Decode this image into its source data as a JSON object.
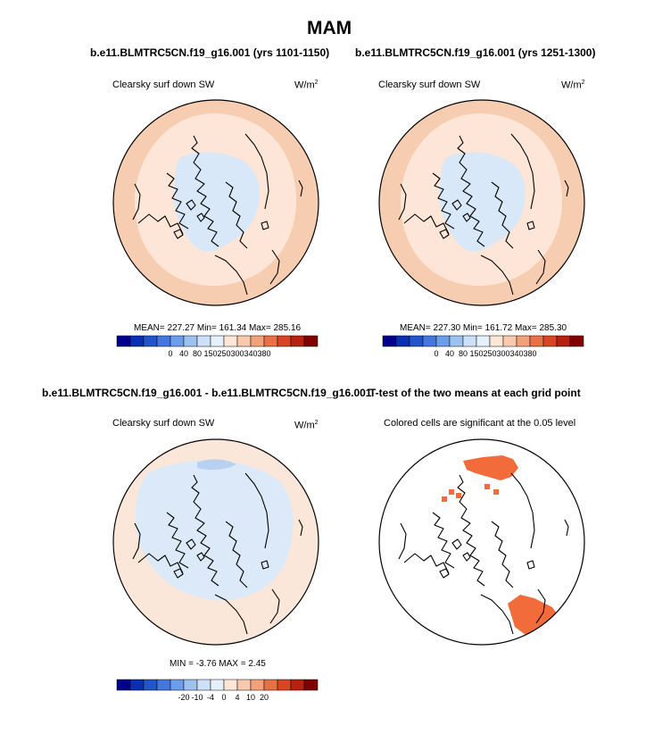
{
  "figure": {
    "title": "MAM",
    "panels": [
      {
        "title": "b.e11.BLMTRC5CN.f19_g16.001 (yrs 1101-1150)",
        "left_label": "Clearsky surf down SW",
        "unit_base": "W/m",
        "unit_exp": "2",
        "stats": "MEAN= 227.27  Min= 161.34  Max= 285.16",
        "colorbar_ticks": [
          "0",
          "40",
          "80",
          "150",
          "250",
          "300",
          "340",
          "380"
        ]
      },
      {
        "title": "b.e11.BLMTRC5CN.f19_g16.001 (yrs 1251-1300)",
        "left_label": "Clearsky surf down SW",
        "unit_base": "W/m",
        "unit_exp": "2",
        "stats": "MEAN= 227.30  Min= 161.72  Max= 285.30",
        "colorbar_ticks": [
          "0",
          "40",
          "80",
          "150",
          "250",
          "300",
          "340",
          "380"
        ]
      },
      {
        "title": "b.e11.BLMTRC5CN.f19_g16.001 - b.e11.BLMTRC5CN.f19_g16.001",
        "left_label": "Clearsky surf down SW",
        "unit_base": "W/m",
        "unit_exp": "2",
        "stats": "MIN =  -3.76 MAX =   2.45",
        "colorbar_ticks": [
          "-20",
          "-10",
          "-4",
          "0",
          "4",
          "10",
          "20"
        ]
      },
      {
        "title": "T-test of the two means at each grid point",
        "left_label": "Colored cells are significant at the 0.05 level"
      }
    ]
  },
  "chart_data": [
    {
      "type": "heatmap",
      "projection": "north polar stereographic",
      "title": "b.e11.BLMTRC5CN.f19_g16.001 (yrs 1101-1150)",
      "variable": "Clearsky surf down SW",
      "units": "W/m2",
      "mean": 227.27,
      "min": 161.34,
      "max": 285.16,
      "levels": [
        0,
        40,
        80,
        150,
        250,
        300,
        340,
        380
      ],
      "colors": [
        "#00008c",
        "#0a2fb4",
        "#2255cc",
        "#4477dd",
        "#6b9de8",
        "#9dc2f0",
        "#cce0f7",
        "#e6f0fb",
        "#fde6d6",
        "#f8c9ac",
        "#f2a27b",
        "#ea7048",
        "#d94424",
        "#b8210f",
        "#800000"
      ]
    },
    {
      "type": "heatmap",
      "projection": "north polar stereographic",
      "title": "b.e11.BLMTRC5CN.f19_g16.001 (yrs 1251-1300)",
      "variable": "Clearsky surf down SW",
      "units": "W/m2",
      "mean": 227.3,
      "min": 161.72,
      "max": 285.3,
      "levels": [
        0,
        40,
        80,
        150,
        250,
        300,
        340,
        380
      ]
    },
    {
      "type": "heatmap",
      "projection": "north polar stereographic",
      "title": "b.e11.BLMTRC5CN.f19_g16.001 - b.e11.BLMTRC5CN.f19_g16.001",
      "variable": "Clearsky surf down SW",
      "units": "W/m2",
      "min": -3.76,
      "max": 2.45,
      "levels": [
        -20,
        -10,
        -4,
        0,
        4,
        10,
        20
      ]
    },
    {
      "type": "heatmap",
      "projection": "north polar stereographic",
      "title": "T-test of the two means at each grid point",
      "note": "Colored cells are significant at the 0.05 level",
      "significance_level": 0.05
    }
  ],
  "colors": {
    "warm_outer": "#f7cdb2",
    "warm_mid": "#fde6d7",
    "cool_inner": "#d8e8f8",
    "diff_warm": "#fbe7d9",
    "diff_cool": "#dbe9f8",
    "diff_darkcool": "#b9d1f1",
    "signif": "#f26b3a",
    "coast": "#000000"
  }
}
